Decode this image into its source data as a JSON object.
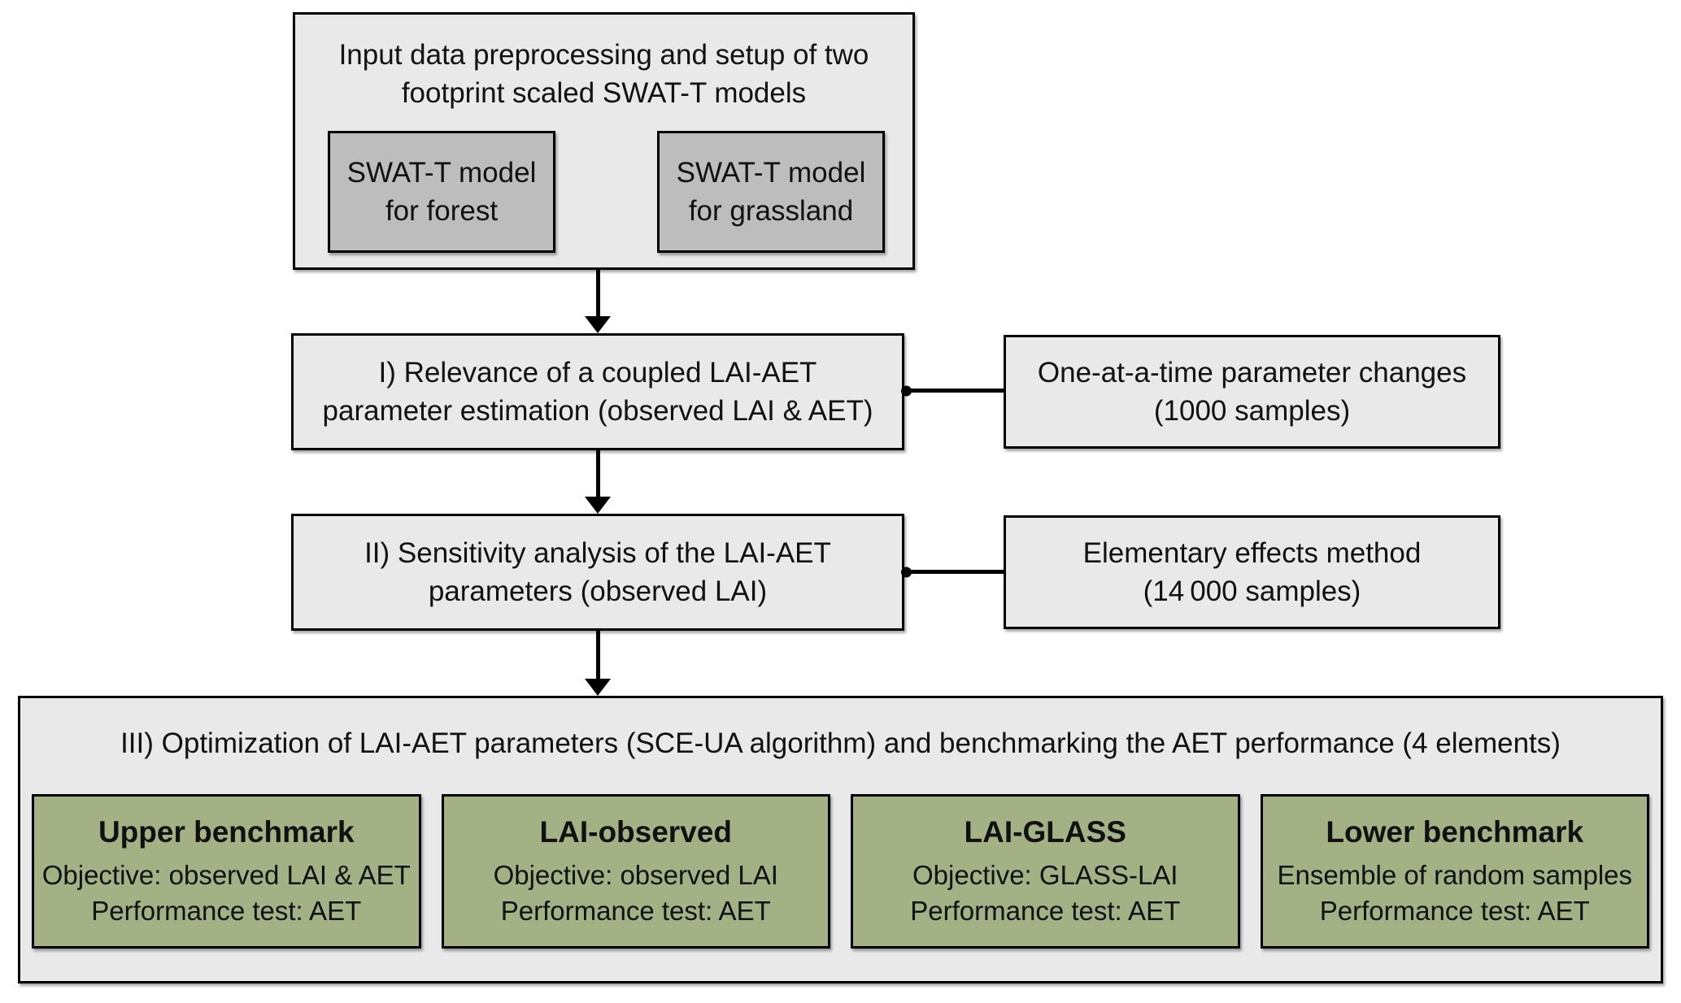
{
  "colors": {
    "page_bg": "#ffffff",
    "box_fill": "#e9e9e9",
    "model_box_fill": "#bdbdbd",
    "element_box_fill": "#a4b185",
    "border": "#000000",
    "text": "#111111"
  },
  "top_box": {
    "title_line1": "Input data preprocessing and setup of two",
    "title_line2": "footprint scaled SWAT-T models",
    "models": [
      {
        "line1": "SWAT-T model",
        "line2": "for forest"
      },
      {
        "line1": "SWAT-T model",
        "line2": "for grassland"
      }
    ]
  },
  "steps": [
    {
      "line1": "I) Relevance of a coupled LAI-AET",
      "line2": "parameter estimation (observed LAI & AET)",
      "side_line1": "One-at-a-time parameter changes",
      "side_line2": "(1000 samples)"
    },
    {
      "line1": "II) Sensitivity analysis of the LAI-AET",
      "line2": "parameters (observed LAI)",
      "side_line1": "Elementary effects method",
      "side_line2": "(14 000 samples)"
    }
  ],
  "optimization": {
    "title": "III) Optimization of LAI-AET parameters (SCE-UA algorithm) and benchmarking the AET performance (4 elements)",
    "elements": [
      {
        "title": "Upper benchmark",
        "line1": "Objective: observed LAI & AET",
        "line2": "Performance test: AET"
      },
      {
        "title": "LAI-observed",
        "line1": "Objective: observed LAI",
        "line2": "Performance test: AET"
      },
      {
        "title": "LAI-GLASS",
        "line1": "Objective: GLASS-LAI",
        "line2": "Performance test: AET"
      },
      {
        "title": "Lower benchmark",
        "line1": "Ensemble of random samples",
        "line2": "Performance test: AET"
      }
    ]
  }
}
